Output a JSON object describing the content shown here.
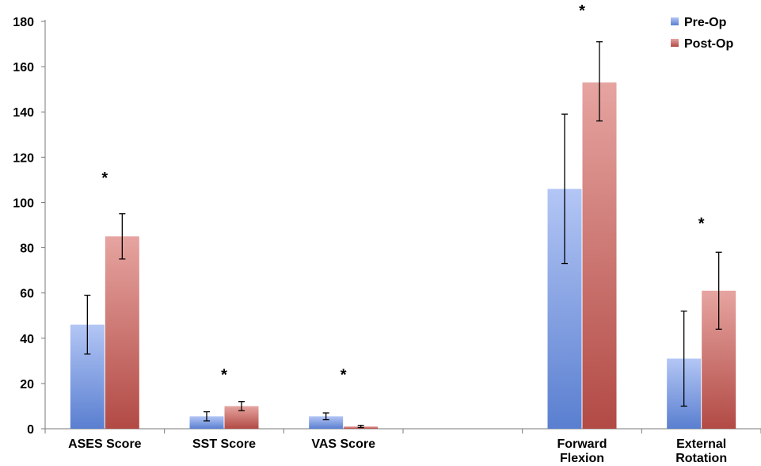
{
  "chart_data": {
    "type": "bar",
    "title": "",
    "xlabel": "",
    "ylabel": "",
    "ylim": [
      0,
      180
    ],
    "yticks": [
      0,
      20,
      40,
      60,
      80,
      100,
      120,
      140,
      160,
      180
    ],
    "grid": false,
    "legend_position": "top-right",
    "categories": [
      [
        "ASES Score"
      ],
      [
        "SST Score"
      ],
      [
        "VAS Score"
      ],
      [
        ""
      ],
      [
        "Forward",
        "Flexion"
      ],
      [
        "External",
        "Rotation"
      ]
    ],
    "series": [
      {
        "name": "Pre-Op",
        "color": "#7f9ad9",
        "values": [
          46,
          5.5,
          5.5,
          null,
          106,
          31
        ],
        "error_low": [
          33,
          3.5,
          4,
          null,
          73,
          10
        ],
        "error_high": [
          59,
          7.5,
          7,
          null,
          139,
          52
        ]
      },
      {
        "name": "Post-Op",
        "color": "#c56a68",
        "values": [
          85,
          10,
          1,
          null,
          153,
          61
        ],
        "error_low": [
          75,
          8,
          0.5,
          null,
          136,
          44
        ],
        "error_high": [
          95,
          12,
          1.5,
          null,
          171,
          78
        ]
      }
    ],
    "annotations": [
      {
        "category": 0,
        "text": "*",
        "y": 112
      },
      {
        "category": 1,
        "text": "*",
        "y": 25
      },
      {
        "category": 2,
        "text": "*",
        "y": 25
      },
      {
        "category": 4,
        "text": "*",
        "y": 186
      },
      {
        "category": 5,
        "text": "*",
        "y": 92
      }
    ]
  }
}
